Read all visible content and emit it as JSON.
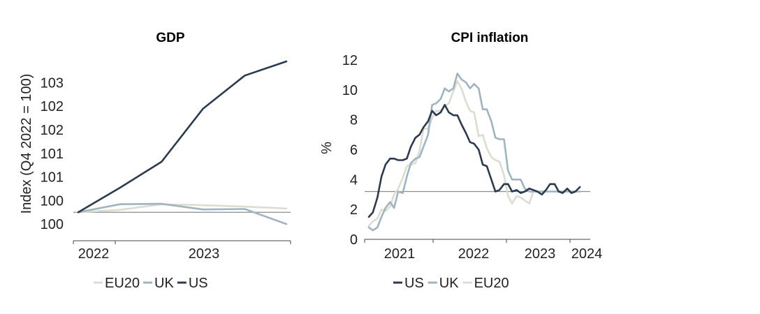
{
  "chart_data": [
    {
      "type": "line",
      "title": "GDP",
      "ylabel": "Index (Q4 2022 = 100)",
      "xlabel": "",
      "x_ticks": [
        "2022",
        "2023"
      ],
      "y_ticks": [
        "100",
        "100",
        "101",
        "101",
        "102",
        "102",
        "103"
      ],
      "y_tick_values": [
        99.75,
        100.25,
        100.75,
        101.25,
        101.75,
        102.25,
        102.75
      ],
      "ylim": [
        99.5,
        103.2
      ],
      "reference_value": 100.0,
      "legend": [
        "EU20",
        "UK",
        "US"
      ],
      "x": [
        0,
        1,
        2,
        3,
        4,
        5
      ],
      "series": [
        {
          "name": "EU20",
          "color": "#dcdcd0",
          "values": [
            100.0,
            100.05,
            100.17,
            100.15,
            100.12,
            100.08
          ]
        },
        {
          "name": "UK",
          "color": "#9fb4c0",
          "values": [
            100.0,
            100.17,
            100.18,
            100.06,
            100.07,
            99.75
          ]
        },
        {
          "name": "US",
          "color": "#2c3a50",
          "values": [
            100.0,
            100.52,
            101.07,
            102.2,
            102.9,
            103.2
          ]
        }
      ]
    },
    {
      "type": "line",
      "title": "CPI inflation",
      "ylabel": "%",
      "xlabel": "",
      "x_ticks": [
        "2021",
        "2022",
        "2023",
        "2024"
      ],
      "x_tick_values": [
        2021,
        2022,
        2023,
        2024
      ],
      "xlim": [
        2020.0,
        2024.25
      ],
      "y_ticks": [
        "0",
        "2",
        "4",
        "6",
        "8",
        "10",
        "12"
      ],
      "y_tick_values": [
        0,
        2,
        4,
        6,
        8,
        10,
        12
      ],
      "ylim": [
        0,
        12
      ],
      "reference_value": 3.2,
      "legend": [
        "US",
        "UK",
        "EU20"
      ],
      "series": [
        {
          "name": "US",
          "color": "#2c3a50",
          "x": [
            2020.0,
            2020.08,
            2020.17,
            2020.25,
            2020.33,
            2020.42,
            2020.5,
            2020.58,
            2020.67,
            2020.75,
            2020.83,
            2020.92,
            2021.0,
            2021.08,
            2021.17,
            2021.25,
            2021.33,
            2021.42,
            2021.5,
            2021.58,
            2021.67,
            2021.75,
            2021.83,
            2021.92,
            2022.0,
            2022.08,
            2022.17,
            2022.25,
            2022.33,
            2022.42,
            2022.5,
            2022.58,
            2022.67,
            2022.75,
            2022.83,
            2022.92,
            2023.0,
            2023.08,
            2023.17,
            2023.25,
            2023.33,
            2023.42,
            2023.5,
            2023.58,
            2023.67,
            2023.75,
            2023.83,
            2023.92,
            2024.0,
            2024.08,
            2024.17
          ],
          "values": [
            1.5,
            1.8,
            2.8,
            4.2,
            5.0,
            5.4,
            5.4,
            5.3,
            5.3,
            5.4,
            6.2,
            6.8,
            7.0,
            7.5,
            7.9,
            8.6,
            8.3,
            8.5,
            9.0,
            8.5,
            8.3,
            8.3,
            7.7,
            7.1,
            6.5,
            6.4,
            6.0,
            5.0,
            4.9,
            4.0,
            3.2,
            3.3,
            3.7,
            3.7,
            3.2,
            3.3,
            3.1,
            3.2,
            3.4,
            3.3,
            3.2,
            3.0,
            3.3,
            3.7,
            3.7,
            3.2,
            3.1,
            3.4,
            3.1,
            3.2,
            3.5
          ]
        },
        {
          "name": "UK",
          "color": "#9fb4c0",
          "x": [
            2020.0,
            2020.08,
            2020.17,
            2020.25,
            2020.33,
            2020.42,
            2020.5,
            2020.58,
            2020.67,
            2020.75,
            2020.83,
            2020.92,
            2021.0,
            2021.08,
            2021.17,
            2021.25,
            2021.33,
            2021.42,
            2021.5,
            2021.58,
            2021.67,
            2021.75,
            2021.83,
            2021.92,
            2022.0,
            2022.08,
            2022.17,
            2022.25,
            2022.33,
            2022.42,
            2022.5,
            2022.58,
            2022.67,
            2022.75,
            2022.83,
            2022.92,
            2023.0,
            2023.08,
            2023.17,
            2023.25,
            2023.33,
            2023.42,
            2023.5,
            2023.58,
            2023.67,
            2023.75,
            2023.83,
            2023.92,
            2024.0,
            2024.08,
            2024.17
          ],
          "values": [
            0.8,
            0.6,
            0.8,
            1.5,
            2.1,
            2.5,
            2.1,
            3.2,
            3.1,
            4.2,
            5.1,
            5.4,
            5.5,
            6.2,
            7.0,
            9.0,
            9.1,
            9.4,
            10.1,
            9.9,
            10.1,
            11.1,
            10.7,
            10.5,
            10.1,
            10.4,
            10.1,
            8.7,
            8.7,
            7.9,
            6.8,
            6.7,
            6.7,
            4.6,
            4.0,
            4.0,
            4.0,
            3.4,
            3.2,
            3.2,
            3.2,
            3.2,
            3.2,
            3.2,
            3.2,
            3.2,
            3.2,
            3.2,
            3.2,
            3.2,
            3.2
          ]
        },
        {
          "name": "EU20",
          "color": "#dcdcd0",
          "x": [
            2020.0,
            2020.08,
            2020.17,
            2020.25,
            2020.33,
            2020.42,
            2020.5,
            2020.58,
            2020.67,
            2020.75,
            2020.83,
            2020.92,
            2021.0,
            2021.08,
            2021.17,
            2021.25,
            2021.33,
            2021.42,
            2021.5,
            2021.58,
            2021.67,
            2021.75,
            2021.83,
            2021.92,
            2022.0,
            2022.08,
            2022.17,
            2022.25,
            2022.33,
            2022.42,
            2022.5,
            2022.58,
            2022.67,
            2022.75,
            2022.83,
            2022.92,
            2023.0,
            2023.08,
            2023.17,
            2023.25,
            2023.33,
            2023.42,
            2023.5,
            2023.58,
            2023.67,
            2023.75,
            2023.83,
            2023.92,
            2024.0,
            2024.08,
            2024.17
          ],
          "values": [
            0.9,
            1.2,
            1.4,
            2.0,
            1.9,
            2.2,
            3.0,
            3.4,
            4.1,
            4.9,
            5.0,
            5.1,
            5.9,
            7.4,
            7.4,
            8.1,
            8.6,
            8.6,
            8.9,
            9.1,
            9.9,
            10.6,
            10.1,
            9.2,
            8.6,
            8.5,
            6.9,
            7.0,
            6.1,
            5.5,
            5.3,
            5.2,
            4.3,
            2.9,
            2.4,
            2.9,
            2.8,
            2.6,
            2.4,
            3.2,
            3.2,
            3.2,
            3.2,
            3.2,
            3.2,
            3.2,
            3.2,
            3.2,
            3.2,
            3.2,
            3.2
          ]
        }
      ]
    }
  ]
}
